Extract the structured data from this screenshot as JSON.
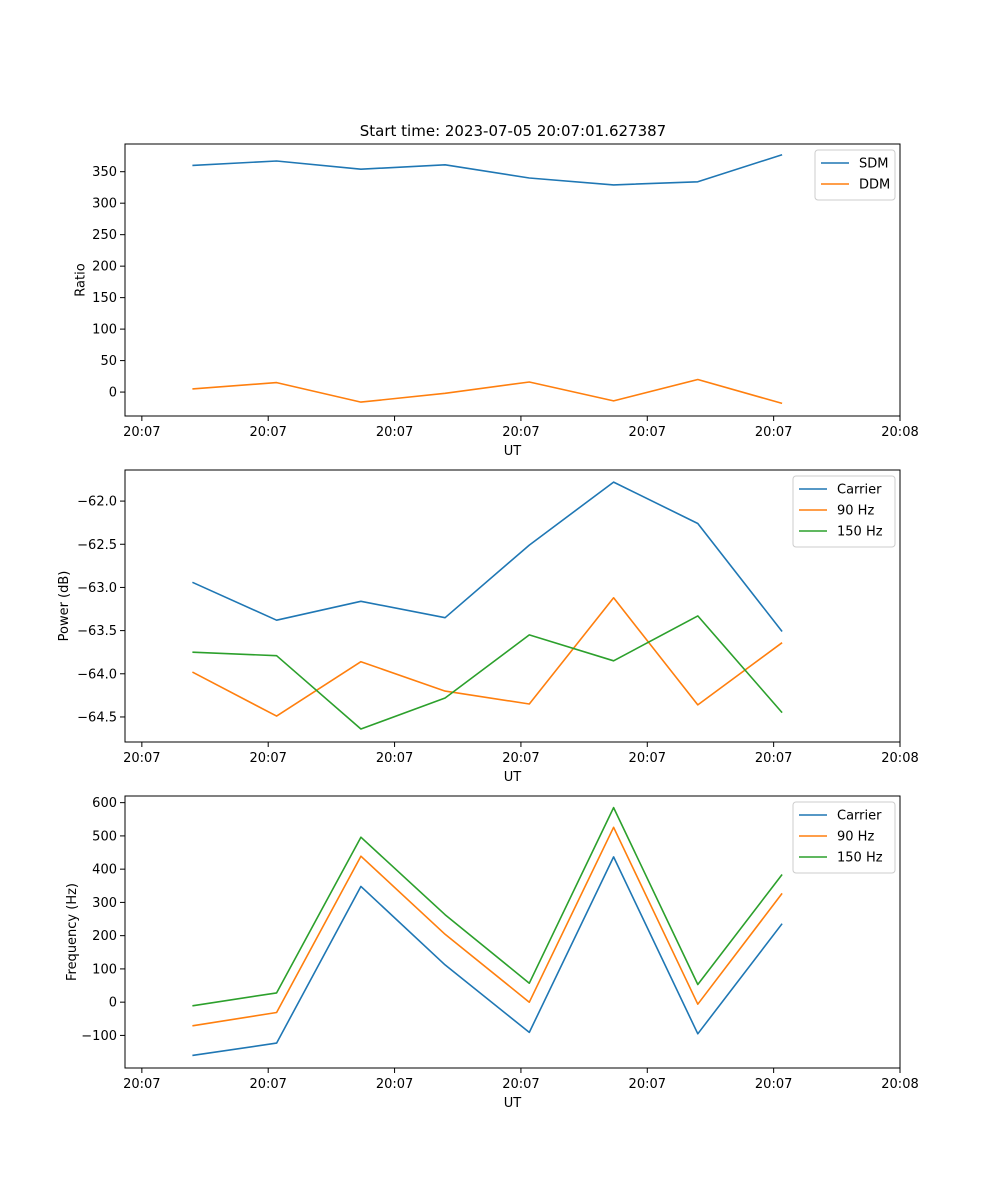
{
  "figure_title": "Start time: 2023-07-05 20:07:01.627387",
  "chart_data": [
    {
      "type": "line",
      "xlabel": "UT",
      "ylabel": "Ratio",
      "x": [
        1,
        2,
        3,
        4,
        5,
        6,
        7,
        8
      ],
      "xlim": [
        0.2,
        9.4
      ],
      "xticks": [
        0.4,
        1.9,
        3.4,
        4.9,
        6.4,
        7.9,
        9.4
      ],
      "xtick_labels": [
        "20:07",
        "20:07",
        "20:07",
        "20:07",
        "20:07",
        "20:07",
        "20:08"
      ],
      "ylim": [
        -38,
        394
      ],
      "yticks": [
        0,
        50,
        100,
        150,
        200,
        250,
        300,
        350
      ],
      "ytick_labels": [
        "0",
        "50",
        "100",
        "150",
        "200",
        "250",
        "300",
        "350"
      ],
      "legend": "top-right",
      "series": [
        {
          "name": "SDM",
          "color": "#1f77b4",
          "values": [
            360,
            367,
            354,
            361,
            340,
            329,
            334,
            377
          ]
        },
        {
          "name": "DDM",
          "color": "#ff7f0e",
          "values": [
            5,
            15,
            -16,
            -2,
            16,
            -14,
            20,
            -18
          ]
        }
      ]
    },
    {
      "type": "line",
      "xlabel": "UT",
      "ylabel": "Power (dB)",
      "x": [
        1,
        2,
        3,
        4,
        5,
        6,
        7,
        8
      ],
      "xlim": [
        0.2,
        9.4
      ],
      "xticks": [
        0.4,
        1.9,
        3.4,
        4.9,
        6.4,
        7.9,
        9.4
      ],
      "xtick_labels": [
        "20:07",
        "20:07",
        "20:07",
        "20:07",
        "20:07",
        "20:07",
        "20:08"
      ],
      "ylim": [
        -64.79,
        -61.64
      ],
      "yticks": [
        -64.5,
        -64.0,
        -63.5,
        -63.0,
        -62.5,
        -62.0
      ],
      "ytick_labels": [
        "−64.5",
        "−64.0",
        "−63.5",
        "−63.0",
        "−62.5",
        "−62.0"
      ],
      "legend": "top-right",
      "series": [
        {
          "name": "Carrier",
          "color": "#1f77b4",
          "values": [
            -62.94,
            -63.38,
            -63.16,
            -63.35,
            -62.51,
            -61.78,
            -62.26,
            -63.51
          ]
        },
        {
          "name": "90 Hz",
          "color": "#ff7f0e",
          "values": [
            -63.98,
            -64.49,
            -63.86,
            -64.2,
            -64.35,
            -63.12,
            -64.36,
            -63.64
          ]
        },
        {
          "name": "150 Hz",
          "color": "#2ca02c",
          "values": [
            -63.75,
            -63.79,
            -64.64,
            -64.28,
            -63.55,
            -63.85,
            -63.33,
            -64.45
          ]
        }
      ]
    },
    {
      "type": "line",
      "xlabel": "UT",
      "ylabel": "Frequency (Hz)",
      "x": [
        1,
        2,
        3,
        4,
        5,
        6,
        7,
        8
      ],
      "xlim": [
        0.2,
        9.4
      ],
      "xticks": [
        0.4,
        1.9,
        3.4,
        4.9,
        6.4,
        7.9,
        9.4
      ],
      "xtick_labels": [
        "20:07",
        "20:07",
        "20:07",
        "20:07",
        "20:07",
        "20:07",
        "20:08"
      ],
      "ylim": [
        -198,
        620
      ],
      "yticks": [
        -100,
        0,
        100,
        200,
        300,
        400,
        500,
        600
      ],
      "ytick_labels": [
        "−100",
        "0",
        "100",
        "200",
        "300",
        "400",
        "500",
        "600"
      ],
      "legend": "top-right",
      "series": [
        {
          "name": "Carrier",
          "color": "#1f77b4",
          "values": [
            -160,
            -123,
            348,
            112,
            -91,
            437,
            -95,
            236
          ]
        },
        {
          "name": "90 Hz",
          "color": "#ff7f0e",
          "values": [
            -71,
            -31,
            439,
            204,
            0,
            526,
            -6,
            327
          ]
        },
        {
          "name": "150 Hz",
          "color": "#2ca02c",
          "values": [
            -11,
            28,
            496,
            263,
            57,
            585,
            53,
            384
          ]
        }
      ]
    }
  ]
}
